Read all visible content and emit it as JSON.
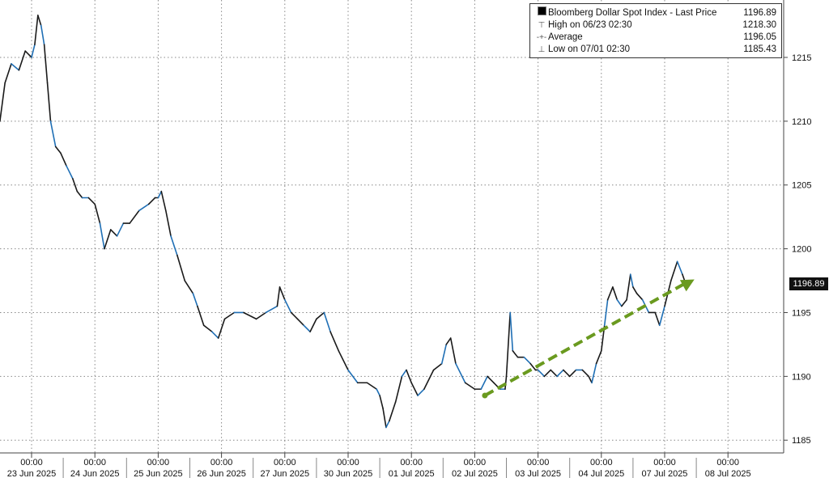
{
  "legend": {
    "title": "Bloomberg Dollar Spot Index - Last Price",
    "last": "1196.89",
    "high_label": "High on 06/23 02:30",
    "high_value": "1218.30",
    "avg_label": "Average",
    "avg_value": "1196.05",
    "low_label": "Low on 07/01 02:30",
    "low_value": "1185.43"
  },
  "last_badge": "1196.89",
  "colors": {
    "price_line": "#1a1a1a",
    "price_up": "#1f6fb5",
    "trend_arrow": "#6a9a1f",
    "grid": "#888888"
  },
  "chart_data": {
    "type": "line",
    "ylim": [
      1184,
      1219.5
    ],
    "grid": "dotted",
    "legend_placement": "top-right",
    "y_ticks": [
      1185,
      1190,
      1195,
      1200,
      1205,
      1210,
      1215
    ],
    "x_ticks": [
      {
        "time": "00:00",
        "date": "23 Jun 2025",
        "day": 0
      },
      {
        "time": "00:00",
        "date": "24 Jun 2025",
        "day": 1
      },
      {
        "time": "00:00",
        "date": "25 Jun 2025",
        "day": 2
      },
      {
        "time": "00:00",
        "date": "26 Jun 2025",
        "day": 3
      },
      {
        "time": "00:00",
        "date": "27 Jun 2025",
        "day": 4
      },
      {
        "time": "00:00",
        "date": "30 Jun 2025",
        "day": 5
      },
      {
        "time": "00:00",
        "date": "01 Jul 2025",
        "day": 6
      },
      {
        "time": "00:00",
        "date": "02 Jul 2025",
        "day": 7
      },
      {
        "time": "00:00",
        "date": "03 Jul 2025",
        "day": 8
      },
      {
        "time": "00:00",
        "date": "04 Jul 2025",
        "day": 9
      },
      {
        "time": "00:00",
        "date": "07 Jul 2025",
        "day": 10
      },
      {
        "time": "00:00",
        "date": "08 Jul 2025",
        "day": 11
      }
    ],
    "series": [
      {
        "points": [
          [
            -0.5,
            1210
          ],
          [
            -0.42,
            1213
          ],
          [
            -0.32,
            1214.5
          ],
          [
            -0.2,
            1214
          ],
          [
            -0.1,
            1215.5
          ],
          [
            0.0,
            1215
          ],
          [
            0.05,
            1216
          ],
          [
            0.1,
            1218.3
          ],
          [
            0.15,
            1217.5
          ],
          [
            0.2,
            1216
          ],
          [
            0.25,
            1213
          ],
          [
            0.3,
            1210
          ],
          [
            0.38,
            1208
          ],
          [
            0.46,
            1207.5
          ],
          [
            0.55,
            1206.5
          ],
          [
            0.65,
            1205.5
          ],
          [
            0.72,
            1204.5
          ],
          [
            0.8,
            1204
          ],
          [
            0.9,
            1204
          ],
          [
            1.0,
            1203.5
          ],
          [
            1.08,
            1202
          ],
          [
            1.15,
            1200
          ],
          [
            1.25,
            1201.5
          ],
          [
            1.35,
            1201
          ],
          [
            1.45,
            1202
          ],
          [
            1.55,
            1202
          ],
          [
            1.7,
            1203
          ],
          [
            1.85,
            1203.5
          ],
          [
            1.95,
            1204
          ],
          [
            2.0,
            1204
          ],
          [
            2.05,
            1204.5
          ],
          [
            2.12,
            1203
          ],
          [
            2.2,
            1201
          ],
          [
            2.3,
            1199.5
          ],
          [
            2.42,
            1197.5
          ],
          [
            2.55,
            1196.5
          ],
          [
            2.62,
            1195.5
          ],
          [
            2.72,
            1194
          ],
          [
            2.85,
            1193.5
          ],
          [
            2.95,
            1193
          ],
          [
            3.05,
            1194.5
          ],
          [
            3.2,
            1195
          ],
          [
            3.35,
            1195
          ],
          [
            3.55,
            1194.5
          ],
          [
            3.7,
            1195
          ],
          [
            3.88,
            1195.5
          ],
          [
            3.92,
            1197
          ],
          [
            4.0,
            1196
          ],
          [
            4.1,
            1195
          ],
          [
            4.2,
            1194.5
          ],
          [
            4.3,
            1194
          ],
          [
            4.4,
            1193.5
          ],
          [
            4.5,
            1194.5
          ],
          [
            4.62,
            1195
          ],
          [
            4.72,
            1193.5
          ],
          [
            4.85,
            1192
          ],
          [
            5.0,
            1190.5
          ],
          [
            5.15,
            1189.5
          ],
          [
            5.3,
            1189.5
          ],
          [
            5.45,
            1189
          ],
          [
            5.5,
            1188.5
          ],
          [
            5.55,
            1187.5
          ],
          [
            5.6,
            1186
          ],
          [
            5.65,
            1186.5
          ],
          [
            5.75,
            1188
          ],
          [
            5.85,
            1190
          ],
          [
            5.92,
            1190.5
          ],
          [
            6.0,
            1189.5
          ],
          [
            6.1,
            1188.5
          ],
          [
            6.2,
            1189
          ],
          [
            6.35,
            1190.5
          ],
          [
            6.48,
            1191
          ],
          [
            6.55,
            1192.5
          ],
          [
            6.62,
            1193
          ],
          [
            6.7,
            1191
          ],
          [
            6.85,
            1189.5
          ],
          [
            7.0,
            1189
          ],
          [
            7.1,
            1189
          ],
          [
            7.2,
            1190
          ],
          [
            7.3,
            1189.5
          ],
          [
            7.4,
            1189
          ],
          [
            7.48,
            1189
          ],
          [
            7.5,
            1190
          ],
          [
            7.56,
            1195
          ],
          [
            7.6,
            1192
          ],
          [
            7.68,
            1191.5
          ],
          [
            7.78,
            1191.5
          ],
          [
            7.88,
            1191
          ],
          [
            7.96,
            1190.5
          ],
          [
            8.0,
            1190.5
          ],
          [
            8.1,
            1190
          ],
          [
            8.2,
            1190.5
          ],
          [
            8.3,
            1190
          ],
          [
            8.4,
            1190.5
          ],
          [
            8.5,
            1190
          ],
          [
            8.6,
            1190.5
          ],
          [
            8.7,
            1190.5
          ],
          [
            8.8,
            1190
          ],
          [
            8.85,
            1189.5
          ],
          [
            8.92,
            1191
          ],
          [
            9.0,
            1192
          ],
          [
            9.05,
            1194
          ],
          [
            9.1,
            1196
          ],
          [
            9.18,
            1197
          ],
          [
            9.25,
            1196
          ],
          [
            9.32,
            1195.5
          ],
          [
            9.4,
            1196
          ],
          [
            9.46,
            1198
          ],
          [
            9.5,
            1197
          ],
          [
            9.56,
            1196.5
          ],
          [
            9.65,
            1196
          ],
          [
            9.75,
            1195
          ],
          [
            9.85,
            1195
          ],
          [
            9.92,
            1194
          ],
          [
            10.0,
            1195.5
          ],
          [
            10.1,
            1197.5
          ],
          [
            10.2,
            1199
          ],
          [
            10.28,
            1198
          ],
          [
            10.35,
            1197
          ]
        ]
      }
    ],
    "trend_arrow": {
      "from": [
        7.16,
        1188.5
      ],
      "to": [
        10.47,
        1197.6
      ]
    }
  }
}
